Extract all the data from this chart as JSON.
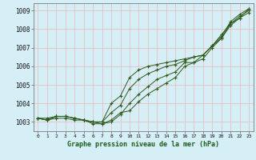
{
  "title": "Graphe pression niveau de la mer (hPa)",
  "bg_color": "#d6eef5",
  "grid_color": "#b8d8e0",
  "line_color": "#2d5a1b",
  "xlim": [
    -0.5,
    23.5
  ],
  "ylim": [
    1002.5,
    1009.4
  ],
  "yticks": [
    1003,
    1004,
    1005,
    1006,
    1007,
    1008,
    1009
  ],
  "xticks": [
    0,
    1,
    2,
    3,
    4,
    5,
    6,
    7,
    8,
    9,
    10,
    11,
    12,
    13,
    14,
    15,
    16,
    17,
    18,
    19,
    20,
    21,
    22,
    23
  ],
  "series": [
    [
      1003.2,
      1003.1,
      1003.3,
      1003.3,
      1003.2,
      1003.1,
      1003.0,
      1002.9,
      1003.0,
      1003.4,
      1004.0,
      1004.5,
      1004.9,
      1005.3,
      1005.5,
      1005.7,
      1006.2,
      1006.2,
      1006.6,
      1007.1,
      1007.5,
      1008.3,
      1008.7,
      1009.0
    ],
    [
      1003.2,
      1003.1,
      1003.2,
      1003.2,
      1003.1,
      1003.1,
      1002.9,
      1002.9,
      1003.1,
      1003.5,
      1003.6,
      1004.1,
      1004.5,
      1004.8,
      1005.1,
      1005.4,
      1006.0,
      1006.2,
      1006.4,
      1007.0,
      1007.5,
      1008.2,
      1008.6,
      1008.9
    ],
    [
      1003.2,
      1003.1,
      1003.3,
      1003.3,
      1003.2,
      1003.1,
      1003.0,
      1003.0,
      1003.5,
      1003.9,
      1004.8,
      1005.3,
      1005.6,
      1005.8,
      1006.0,
      1006.1,
      1006.3,
      1006.5,
      1006.6,
      1007.1,
      1007.6,
      1008.4,
      1008.8,
      1009.1
    ],
    [
      1003.2,
      1003.2,
      1003.3,
      1003.3,
      1003.2,
      1003.1,
      1003.0,
      1003.0,
      1004.0,
      1004.4,
      1005.4,
      1005.8,
      1006.0,
      1006.1,
      1006.2,
      1006.3,
      1006.4,
      1006.5,
      1006.6,
      1007.1,
      1007.7,
      1008.3,
      1008.6,
      1009.1
    ]
  ]
}
